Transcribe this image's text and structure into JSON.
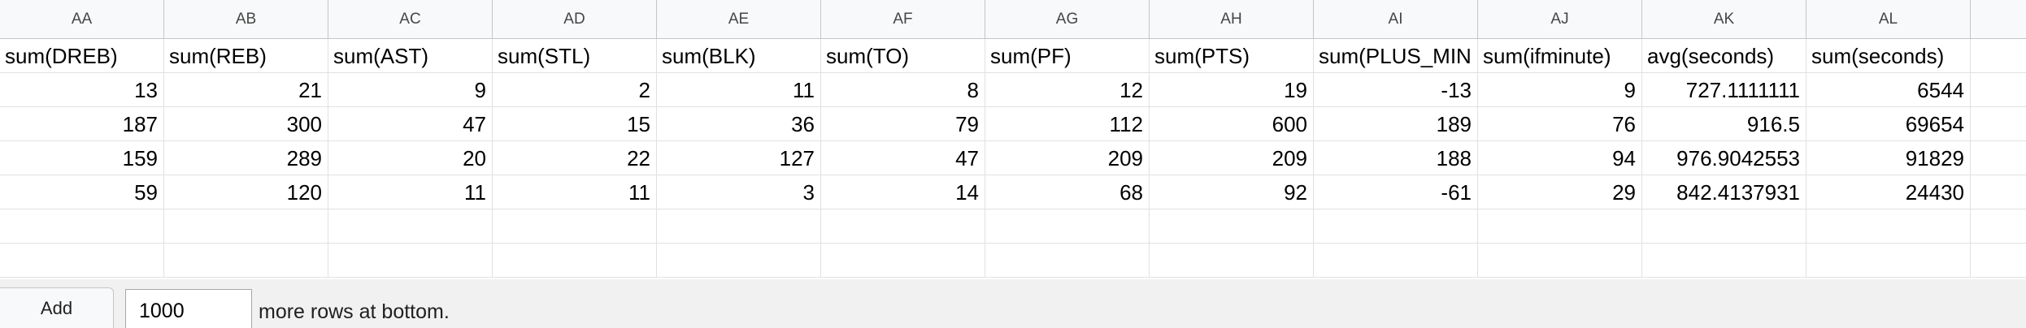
{
  "columns": [
    "AA",
    "AB",
    "AC",
    "AD",
    "AE",
    "AF",
    "AG",
    "AH",
    "AI",
    "AJ",
    "AK",
    "AL",
    ""
  ],
  "header_row": [
    "sum(DREB)",
    "sum(REB)",
    "sum(AST)",
    "sum(STL)",
    "sum(BLK)",
    "sum(TO)",
    "sum(PF)",
    "sum(PTS)",
    "sum(PLUS_MIN",
    "sum(ifminute)",
    "avg(seconds)",
    "sum(seconds)",
    ""
  ],
  "rows": [
    [
      "13",
      "21",
      "9",
      "2",
      "11",
      "8",
      "12",
      "19",
      "-13",
      "9",
      "727.1111111",
      "6544",
      ""
    ],
    [
      "187",
      "300",
      "47",
      "15",
      "36",
      "79",
      "112",
      "600",
      "189",
      "76",
      "916.5",
      "69654",
      ""
    ],
    [
      "159",
      "289",
      "20",
      "22",
      "127",
      "47",
      "209",
      "209",
      "188",
      "94",
      "976.9042553",
      "91829",
      ""
    ],
    [
      "59",
      "120",
      "11",
      "11",
      "3",
      "14",
      "68",
      "92",
      "-61",
      "29",
      "842.4137931",
      "24430",
      ""
    ],
    [
      "",
      "",
      "",
      "",
      "",
      "",
      "",
      "",
      "",
      "",
      "",
      "",
      ""
    ],
    [
      "",
      "",
      "",
      "",
      "",
      "",
      "",
      "",
      "",
      "",
      "",
      "",
      ""
    ]
  ],
  "footer": {
    "add_label": "Add",
    "rows_value": "1000",
    "suffix_label": "more rows at bottom."
  }
}
